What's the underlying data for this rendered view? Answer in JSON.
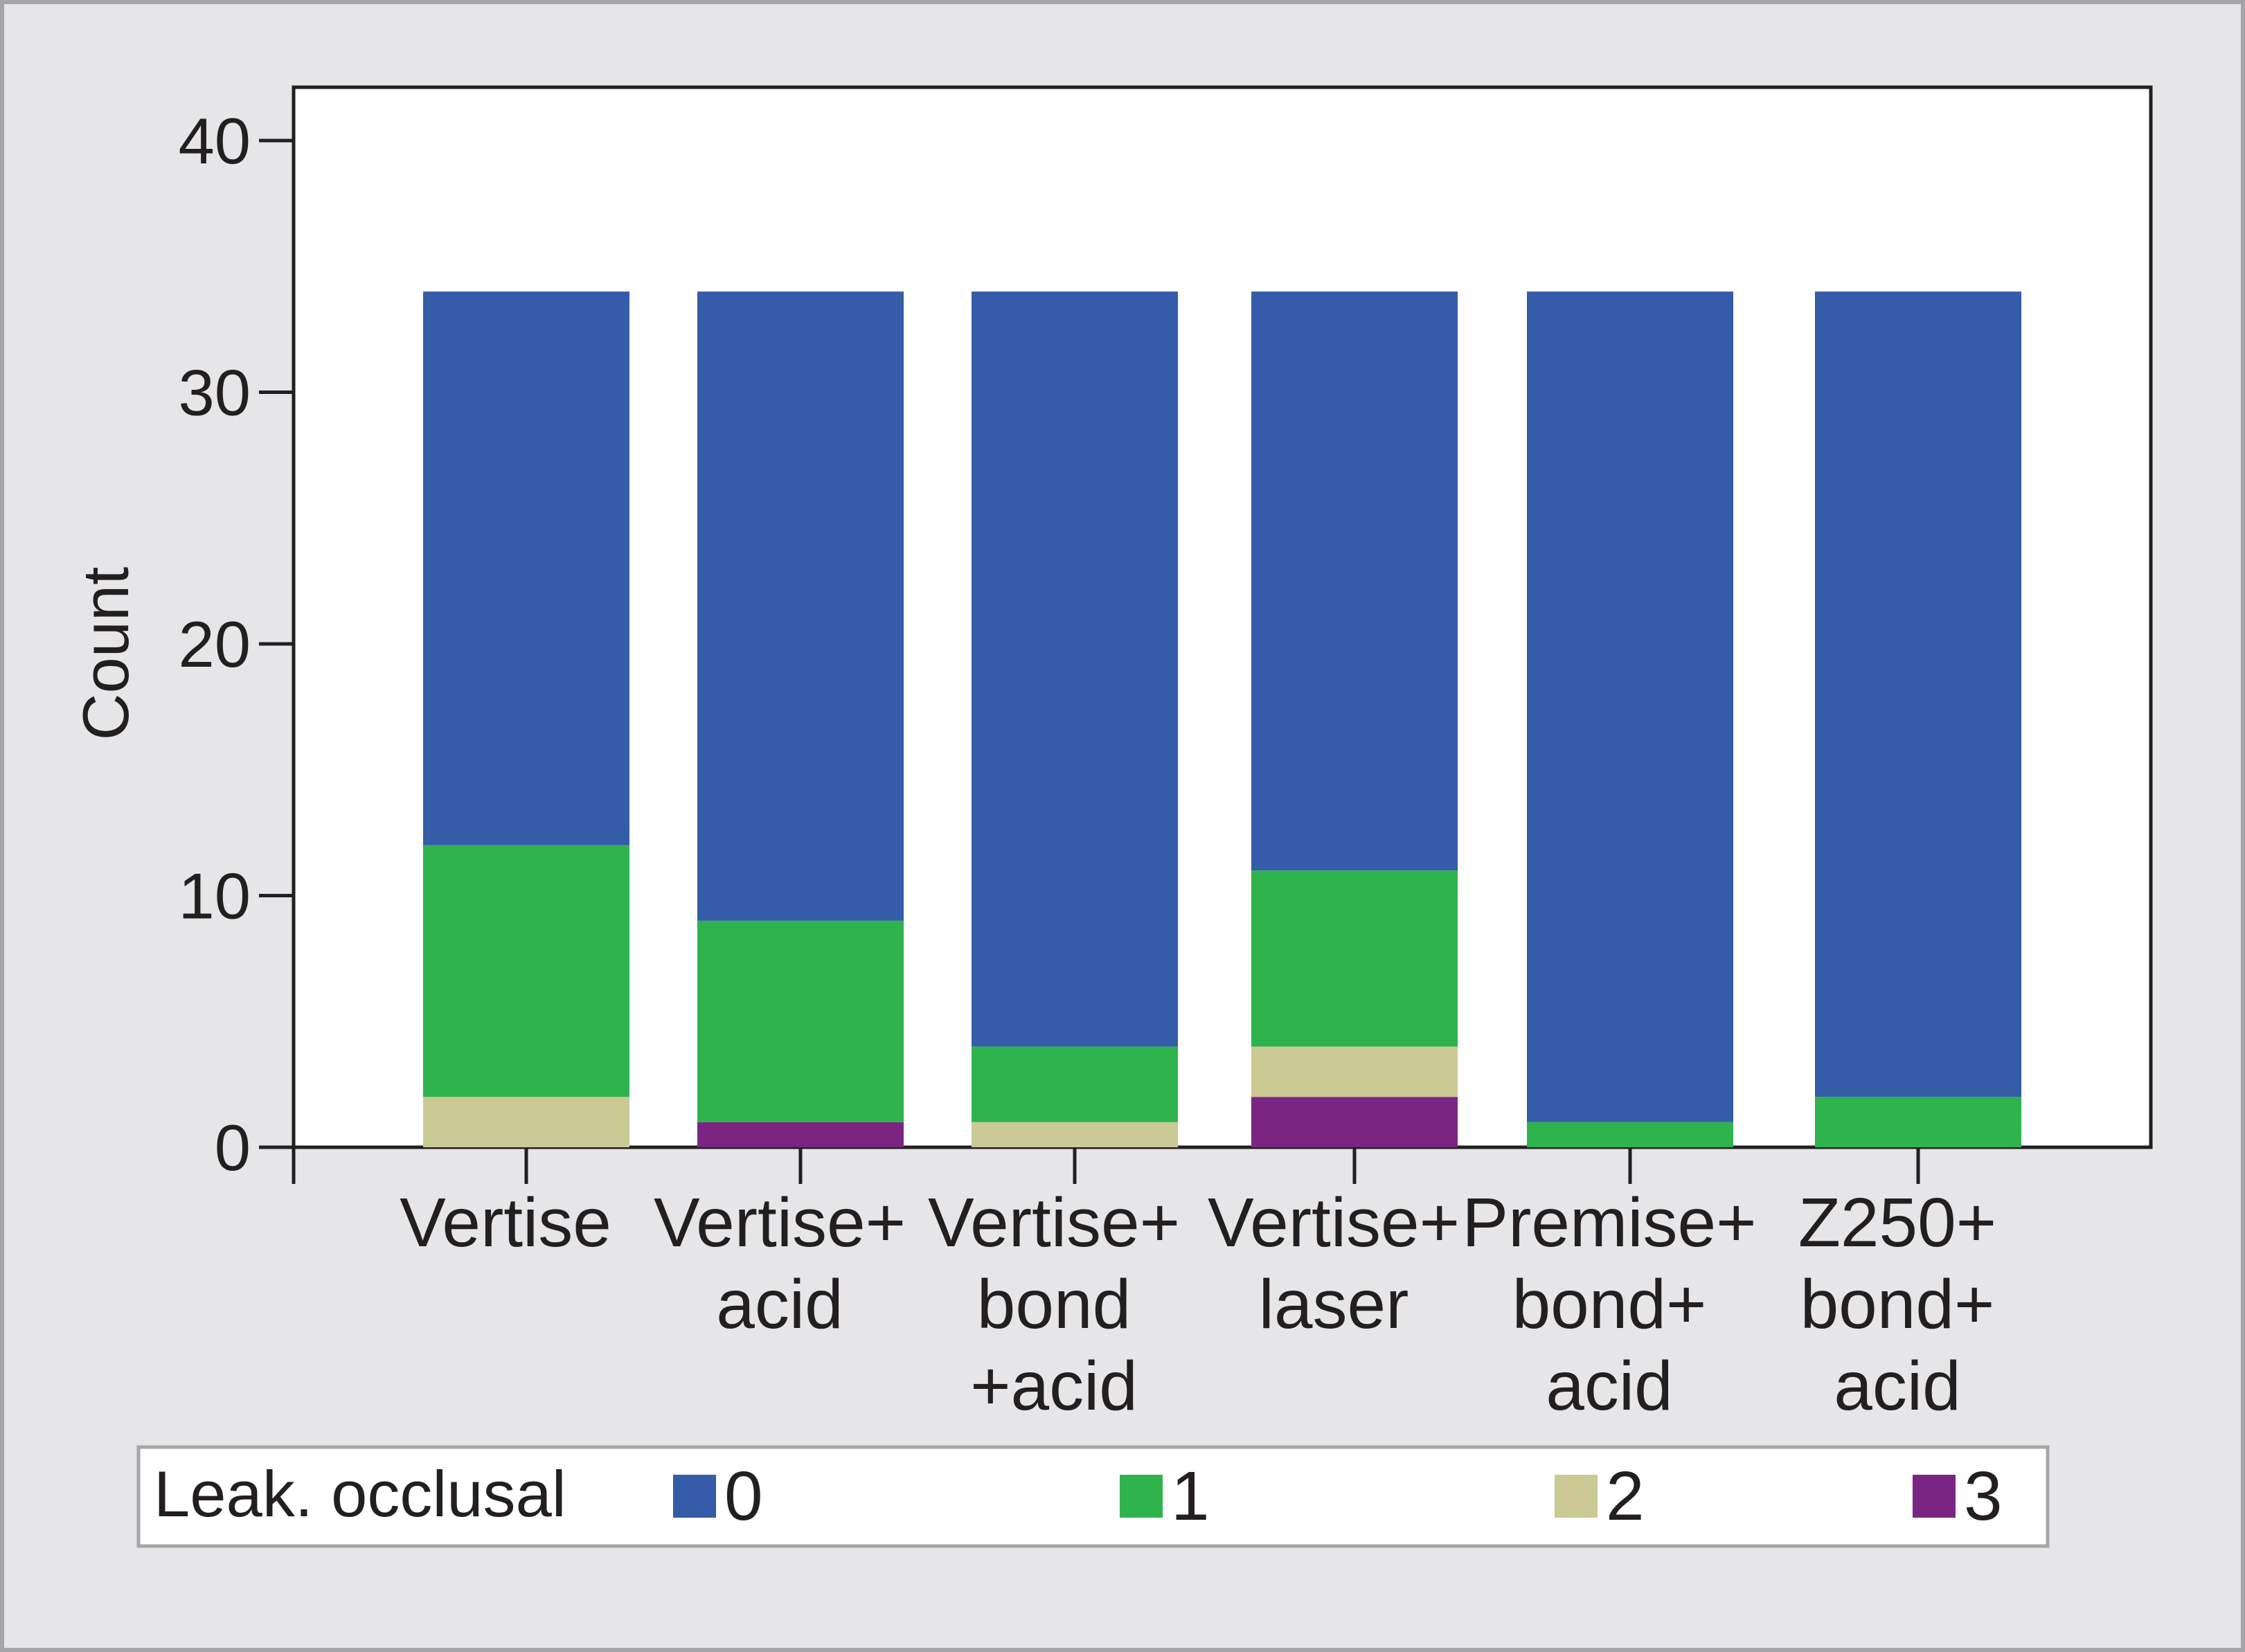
{
  "chart_data": {
    "type": "bar",
    "stacked": true,
    "title": "",
    "xlabel": "",
    "ylabel": "Count",
    "ylim": [
      0,
      42
    ],
    "yticks": [
      0,
      10,
      20,
      30,
      40
    ],
    "categories": [
      [
        "Vertise"
      ],
      [
        "Vertise+",
        "acid"
      ],
      [
        "Vertise+",
        "bond",
        "+acid"
      ],
      [
        "Vertise+",
        "laser"
      ],
      [
        "Premise+",
        "bond+",
        "acid"
      ],
      [
        "Z250+",
        "bond+",
        "acid"
      ]
    ],
    "series": [
      {
        "name": "0",
        "color": "#355ca8",
        "values": [
          22,
          25,
          30,
          23,
          33,
          32
        ]
      },
      {
        "name": "1",
        "color": "#2fb34d",
        "values": [
          10,
          8,
          3,
          7,
          1,
          2
        ]
      },
      {
        "name": "2",
        "color": "#cbc994",
        "values": [
          2,
          0,
          1,
          2,
          0,
          0
        ]
      },
      {
        "name": "3",
        "color": "#7b2583",
        "values": [
          0,
          1,
          0,
          2,
          0,
          0
        ]
      }
    ],
    "legend": {
      "title": "Leak. occlusal",
      "position": "bottom"
    },
    "grid": false
  }
}
